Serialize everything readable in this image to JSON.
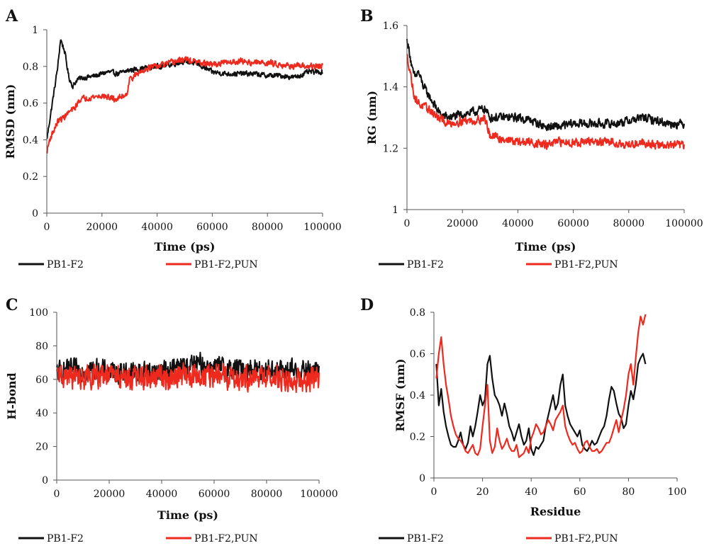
{
  "colors": {
    "black_series": "#111111",
    "red_series": "#ee2a1f",
    "axis": "#555555"
  },
  "chart_data": [
    {
      "panel": "A",
      "type": "line",
      "xlabel": "Time (ps)",
      "ylabel": "RMSD (nm)",
      "xlim": [
        0,
        100000
      ],
      "ylim": [
        0,
        1
      ],
      "xticks": [
        0,
        20000,
        40000,
        60000,
        80000,
        100000
      ],
      "yticks": [
        0,
        0.2,
        0.4,
        0.6,
        0.8,
        1
      ],
      "ytick_labels": [
        "0",
        "0.2",
        "0.4",
        "0.6",
        "0.8",
        "1"
      ],
      "grid": false,
      "legend_position": "bottom",
      "series": [
        {
          "name": "PB1-F2",
          "color": "#111111",
          "noise": 0.012,
          "x": [
            0,
            1000,
            2500,
            4000,
            5000,
            6500,
            8000,
            9500,
            11000,
            14000,
            18000,
            22000,
            26000,
            30000,
            35000,
            40000,
            45000,
            50000,
            55000,
            60000,
            65000,
            70000,
            75000,
            80000,
            85000,
            90000,
            95000,
            100000
          ],
          "y": [
            0.4,
            0.5,
            0.65,
            0.8,
            0.95,
            0.88,
            0.74,
            0.69,
            0.73,
            0.74,
            0.75,
            0.77,
            0.76,
            0.78,
            0.79,
            0.8,
            0.81,
            0.83,
            0.81,
            0.77,
            0.76,
            0.76,
            0.76,
            0.75,
            0.75,
            0.74,
            0.77,
            0.77
          ]
        },
        {
          "name": "PB1-F2,PUN",
          "color": "#ee2a1f",
          "noise": 0.014,
          "x": [
            0,
            1000,
            2500,
            4000,
            6000,
            8000,
            10000,
            12000,
            15000,
            20000,
            25000,
            29000,
            30000,
            33000,
            36000,
            40000,
            45000,
            50000,
            55000,
            60000,
            65000,
            70000,
            75000,
            80000,
            85000,
            90000,
            95000,
            100000
          ],
          "y": [
            0.33,
            0.4,
            0.45,
            0.5,
            0.52,
            0.55,
            0.57,
            0.62,
            0.63,
            0.64,
            0.62,
            0.65,
            0.73,
            0.76,
            0.79,
            0.8,
            0.82,
            0.84,
            0.82,
            0.81,
            0.82,
            0.83,
            0.82,
            0.82,
            0.81,
            0.8,
            0.8,
            0.8
          ]
        }
      ]
    },
    {
      "panel": "B",
      "type": "line",
      "xlabel": "Time (ps)",
      "ylabel": "RG (nm)",
      "xlim": [
        0,
        100000
      ],
      "ylim": [
        1,
        1.6
      ],
      "xticks": [
        0,
        20000,
        40000,
        60000,
        80000,
        100000
      ],
      "yticks": [
        1,
        1.2,
        1.4,
        1.6
      ],
      "ytick_labels": [
        "1",
        "1.2",
        "1.4",
        "1.6"
      ],
      "grid": false,
      "legend_position": "bottom",
      "series": [
        {
          "name": "PB1-F2",
          "color": "#111111",
          "noise": 0.012,
          "x": [
            0,
            1000,
            2000,
            3000,
            4000,
            6000,
            8000,
            10000,
            12000,
            15000,
            20000,
            25000,
            28000,
            30000,
            35000,
            40000,
            45000,
            50000,
            55000,
            60000,
            65000,
            70000,
            75000,
            80000,
            85000,
            90000,
            95000,
            100000
          ],
          "y": [
            1.55,
            1.51,
            1.45,
            1.43,
            1.45,
            1.4,
            1.37,
            1.34,
            1.31,
            1.3,
            1.31,
            1.32,
            1.33,
            1.3,
            1.3,
            1.3,
            1.29,
            1.27,
            1.27,
            1.28,
            1.28,
            1.28,
            1.28,
            1.29,
            1.3,
            1.29,
            1.28,
            1.28
          ]
        },
        {
          "name": "PB1-F2,PUN",
          "color": "#ee2a1f",
          "noise": 0.012,
          "x": [
            0,
            1000,
            2000,
            3000,
            5000,
            7000,
            9000,
            11000,
            13000,
            15000,
            20000,
            25000,
            28000,
            30000,
            35000,
            40000,
            45000,
            50000,
            55000,
            60000,
            65000,
            70000,
            75000,
            80000,
            85000,
            90000,
            95000,
            100000
          ],
          "y": [
            1.5,
            1.46,
            1.4,
            1.36,
            1.34,
            1.33,
            1.32,
            1.3,
            1.29,
            1.28,
            1.29,
            1.29,
            1.3,
            1.24,
            1.23,
            1.22,
            1.22,
            1.21,
            1.22,
            1.22,
            1.22,
            1.22,
            1.22,
            1.21,
            1.22,
            1.21,
            1.21,
            1.21
          ]
        }
      ]
    },
    {
      "panel": "C",
      "type": "line",
      "xlabel": "Time (ps)",
      "ylabel": "H-bond",
      "xlim": [
        0,
        100000
      ],
      "ylim": [
        0,
        100
      ],
      "xticks": [
        0,
        20000,
        40000,
        60000,
        80000,
        100000
      ],
      "yticks": [
        0,
        20,
        40,
        60,
        80,
        100
      ],
      "ytick_labels": [
        "0",
        "20",
        "40",
        "60",
        "80",
        "100"
      ],
      "grid": false,
      "legend_position": "bottom",
      "series": [
        {
          "name": "PB1-F2",
          "color": "#111111",
          "noise": 5.5,
          "x": [
            0,
            10000,
            20000,
            30000,
            40000,
            50000,
            55000,
            60000,
            70000,
            80000,
            90000,
            100000
          ],
          "y": [
            64,
            66,
            65,
            64,
            65,
            68,
            69,
            67,
            66,
            66,
            65,
            65
          ]
        },
        {
          "name": "PB1-F2,PUN",
          "color": "#ee2a1f",
          "noise": 6.0,
          "x": [
            0,
            10000,
            20000,
            30000,
            40000,
            50000,
            60000,
            70000,
            80000,
            90000,
            100000
          ],
          "y": [
            62,
            61,
            62,
            61,
            61,
            62,
            62,
            61,
            61,
            60,
            60
          ]
        }
      ]
    },
    {
      "panel": "D",
      "type": "line",
      "xlabel": "Residue",
      "ylabel": "RMSF (nm)",
      "xlim": [
        0,
        100
      ],
      "ylim": [
        0,
        0.8
      ],
      "xticks": [
        0,
        20,
        40,
        60,
        80,
        100
      ],
      "yticks": [
        0,
        0.2,
        0.4,
        0.6,
        0.8
      ],
      "ytick_labels": [
        "0",
        "0.2",
        "0.4",
        "0.6",
        "0.8"
      ],
      "grid": false,
      "legend_position": "bottom",
      "series": [
        {
          "name": "PB1-F2",
          "color": "#111111",
          "noise": 0,
          "x": [
            1,
            2,
            3,
            4,
            5,
            6,
            7,
            8,
            9,
            10,
            11,
            12,
            13,
            14,
            15,
            16,
            17,
            18,
            19,
            20,
            21,
            22,
            23,
            24,
            25,
            26,
            27,
            28,
            29,
            30,
            31,
            32,
            33,
            34,
            35,
            36,
            37,
            38,
            39,
            40,
            41,
            42,
            43,
            44,
            45,
            46,
            47,
            48,
            49,
            50,
            51,
            52,
            53,
            54,
            55,
            56,
            57,
            58,
            59,
            60,
            61,
            62,
            63,
            64,
            65,
            66,
            67,
            68,
            69,
            70,
            71,
            72,
            73,
            74,
            75,
            76,
            77,
            78,
            79,
            80,
            81,
            82,
            83,
            84,
            85,
            86,
            87
          ],
          "y": [
            0.55,
            0.35,
            0.43,
            0.32,
            0.25,
            0.2,
            0.16,
            0.15,
            0.15,
            0.18,
            0.22,
            0.16,
            0.14,
            0.17,
            0.25,
            0.2,
            0.25,
            0.32,
            0.4,
            0.35,
            0.38,
            0.55,
            0.59,
            0.48,
            0.4,
            0.38,
            0.35,
            0.3,
            0.36,
            0.31,
            0.25,
            0.22,
            0.18,
            0.22,
            0.26,
            0.2,
            0.16,
            0.18,
            0.24,
            0.14,
            0.11,
            0.15,
            0.14,
            0.16,
            0.18,
            0.25,
            0.3,
            0.35,
            0.4,
            0.33,
            0.36,
            0.45,
            0.5,
            0.35,
            0.3,
            0.26,
            0.24,
            0.22,
            0.2,
            0.23,
            0.16,
            0.14,
            0.13,
            0.15,
            0.18,
            0.16,
            0.17,
            0.2,
            0.23,
            0.25,
            0.3,
            0.38,
            0.44,
            0.42,
            0.36,
            0.31,
            0.29,
            0.24,
            0.26,
            0.35,
            0.42,
            0.38,
            0.45,
            0.55,
            0.58,
            0.6,
            0.55
          ]
        },
        {
          "name": "PB1-F2,PUN",
          "color": "#ee2a1f",
          "noise": 0,
          "x": [
            1,
            2,
            3,
            4,
            5,
            6,
            7,
            8,
            9,
            10,
            11,
            12,
            13,
            14,
            15,
            16,
            17,
            18,
            19,
            20,
            21,
            22,
            23,
            24,
            25,
            26,
            27,
            28,
            29,
            30,
            31,
            32,
            33,
            34,
            35,
            36,
            37,
            38,
            39,
            40,
            41,
            42,
            43,
            44,
            45,
            46,
            47,
            48,
            49,
            50,
            51,
            52,
            53,
            54,
            55,
            56,
            57,
            58,
            59,
            60,
            61,
            62,
            63,
            64,
            65,
            66,
            67,
            68,
            69,
            70,
            71,
            72,
            73,
            74,
            75,
            76,
            77,
            78,
            79,
            80,
            81,
            82,
            83,
            84,
            85,
            86,
            87
          ],
          "y": [
            0.48,
            0.6,
            0.68,
            0.55,
            0.45,
            0.38,
            0.3,
            0.25,
            0.21,
            0.19,
            0.18,
            0.16,
            0.13,
            0.12,
            0.14,
            0.16,
            0.12,
            0.11,
            0.14,
            0.25,
            0.35,
            0.45,
            0.18,
            0.12,
            0.15,
            0.24,
            0.18,
            0.14,
            0.16,
            0.19,
            0.15,
            0.13,
            0.13,
            0.16,
            0.1,
            0.11,
            0.12,
            0.15,
            0.12,
            0.19,
            0.22,
            0.26,
            0.24,
            0.21,
            0.22,
            0.25,
            0.28,
            0.26,
            0.23,
            0.28,
            0.3,
            0.32,
            0.35,
            0.25,
            0.21,
            0.18,
            0.16,
            0.17,
            0.14,
            0.12,
            0.13,
            0.17,
            0.18,
            0.15,
            0.13,
            0.13,
            0.14,
            0.12,
            0.13,
            0.15,
            0.17,
            0.17,
            0.2,
            0.24,
            0.28,
            0.22,
            0.28,
            0.33,
            0.4,
            0.5,
            0.55,
            0.45,
            0.58,
            0.7,
            0.78,
            0.74,
            0.79
          ]
        }
      ]
    }
  ]
}
